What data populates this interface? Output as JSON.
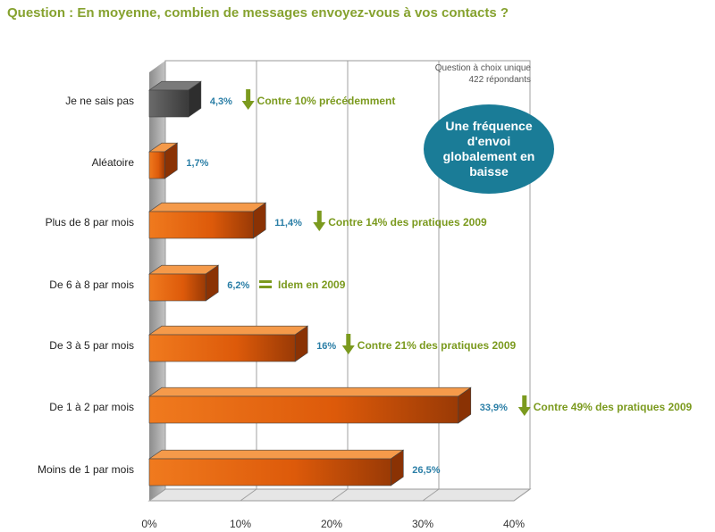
{
  "title": "Question : En moyenne, combien de messages envoyez-vous à vos contacts ?",
  "meta": {
    "line1": "Question à choix unique",
    "line2": "422 répondants"
  },
  "bubble": "Une fréquence d'envoi globalement en baisse",
  "colors": {
    "bar_orange": "#e8640c",
    "bar_gray": "#555555",
    "value_label": "#2a7ea6",
    "annotation": "#7b9a1e",
    "bubble": "#1a7c97",
    "title": "#86a22f"
  },
  "chart_data": {
    "type": "bar",
    "orientation": "horizontal",
    "style": "3d",
    "categories": [
      "Je ne sais pas",
      "Aléatoire",
      "Plus de 8 par mois",
      "De 6 à 8 par mois",
      "De 3 à 5 par mois",
      "De 1 à 2 par mois",
      "Moins de 1 par mois"
    ],
    "values": [
      4.3,
      1.7,
      11.4,
      6.2,
      16,
      33.9,
      26.5
    ],
    "value_labels": [
      "4,3%",
      "1,7%",
      "11,4%",
      "6,2%",
      "16%",
      "33,9%",
      "26,5%"
    ],
    "bar_colors": [
      "gray",
      "orange",
      "orange",
      "orange",
      "orange",
      "orange",
      "orange"
    ],
    "annotations": [
      {
        "category_index": 0,
        "marker": "down",
        "text": "Contre 10% précédemment"
      },
      {
        "category_index": 2,
        "marker": "down",
        "text": "Contre 14% des pratiques 2009"
      },
      {
        "category_index": 3,
        "marker": "equal",
        "text": "Idem en 2009"
      },
      {
        "category_index": 4,
        "marker": "down",
        "text": "Contre 21% des pratiques 2009"
      },
      {
        "category_index": 5,
        "marker": "down",
        "text": "Contre 49% des pratiques 2009"
      }
    ],
    "xlim": [
      0,
      40
    ],
    "xticks": [
      0,
      10,
      20,
      30,
      40
    ],
    "xtick_labels": [
      "0%",
      "10%",
      "20%",
      "30%",
      "40%"
    ],
    "grid": true,
    "legend": "none"
  }
}
